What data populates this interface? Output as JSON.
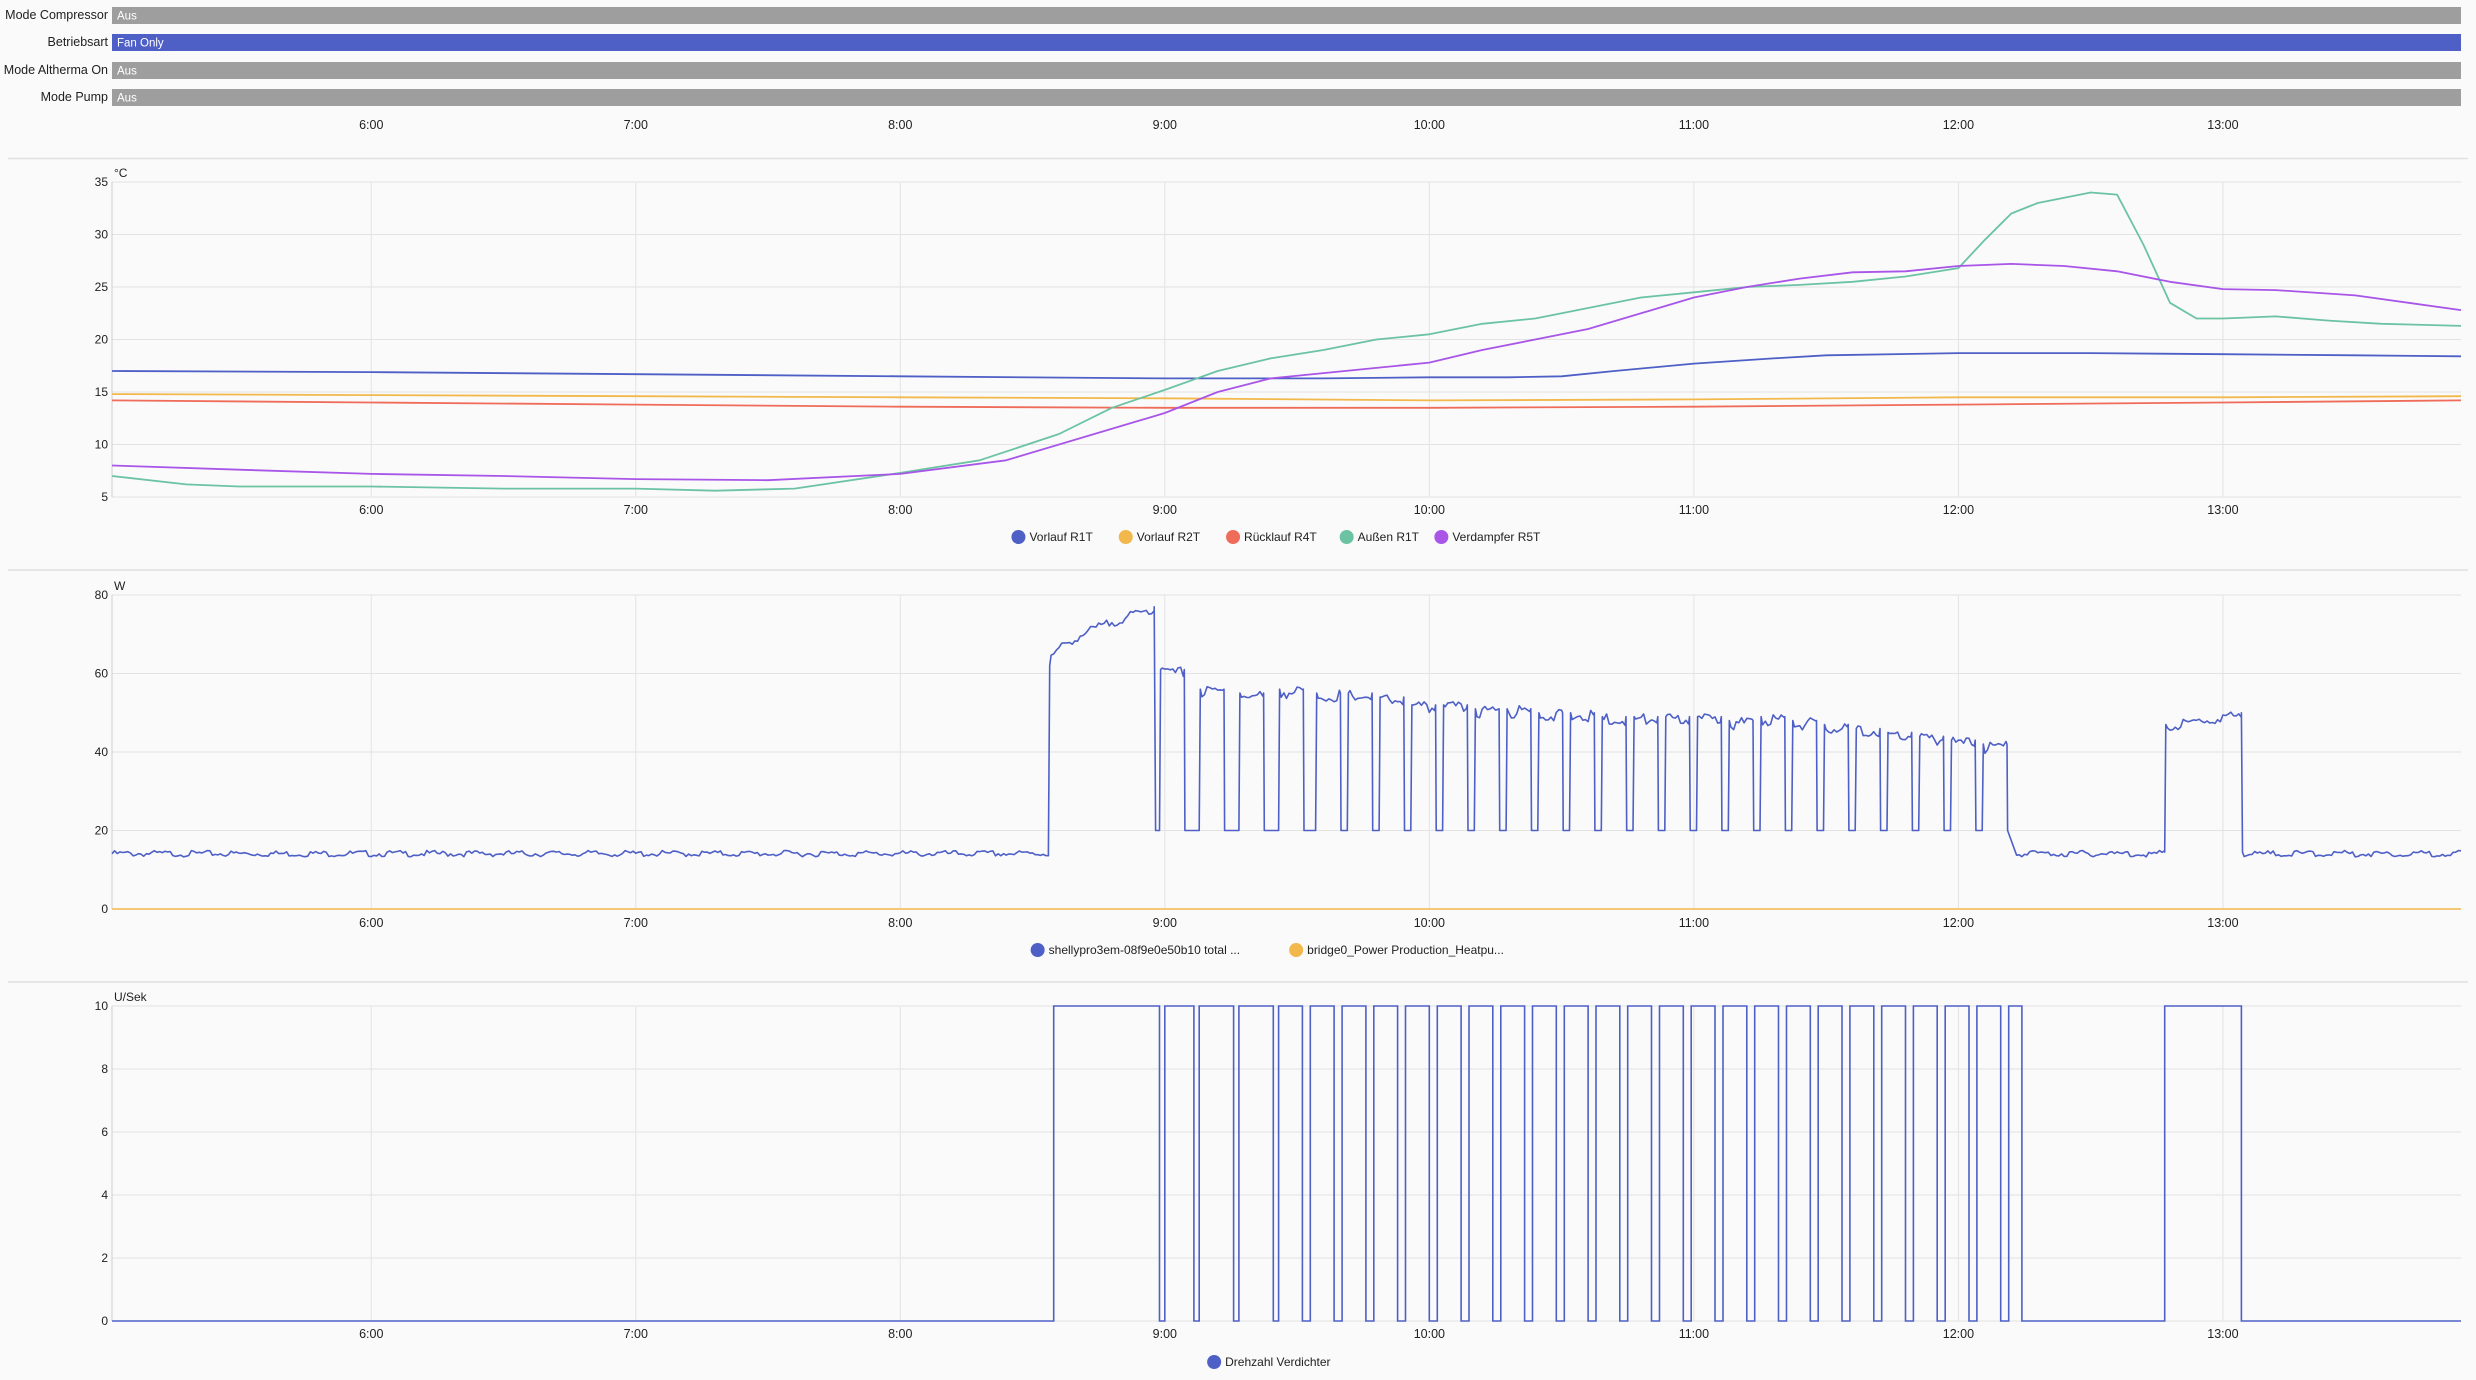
{
  "timeline": {
    "rows": [
      {
        "label": "Mode Compressor",
        "state": "Aus",
        "color": "#9e9e9e"
      },
      {
        "label": "Betriebsart",
        "state": "Fan Only",
        "color": "#4e5fc6"
      },
      {
        "label": "Mode Altherma On",
        "state": "Aus",
        "color": "#9e9e9e"
      },
      {
        "label": "Mode Pump",
        "state": "Aus",
        "color": "#9e9e9e"
      }
    ],
    "x_ticks": [
      "6:00",
      "7:00",
      "8:00",
      "9:00",
      "10:00",
      "11:00",
      "12:00",
      "13:00"
    ]
  },
  "chart_data": [
    {
      "type": "line",
      "unit": "°C",
      "ylim": [
        5,
        35
      ],
      "yticks": [
        "5",
        "10",
        "15",
        "20",
        "25",
        "30",
        "35"
      ],
      "xlim": [
        5.02,
        13.9
      ],
      "x_ticks": [
        "6:00",
        "7:00",
        "8:00",
        "9:00",
        "10:00",
        "11:00",
        "12:00",
        "13:00"
      ],
      "grid": true,
      "legend": "bottom",
      "series": [
        {
          "name": "Vorlauf R1T",
          "color": "#4e5fc6",
          "x": [
            5.02,
            6.0,
            7.0,
            8.0,
            9.0,
            9.3,
            9.6,
            10.0,
            10.3,
            10.5,
            10.7,
            11.0,
            11.3,
            11.5,
            12.0,
            12.5,
            13.0,
            13.5,
            13.9
          ],
          "y": [
            17,
            16.9,
            16.7,
            16.5,
            16.3,
            16.3,
            16.3,
            16.4,
            16.4,
            16.5,
            17.0,
            17.7,
            18.2,
            18.5,
            18.7,
            18.7,
            18.6,
            18.5,
            18.4
          ]
        },
        {
          "name": "Vorlauf R2T",
          "color": "#f2b84b",
          "x": [
            5.02,
            6.0,
            7.0,
            8.0,
            9.0,
            10.0,
            11.0,
            12.0,
            13.0,
            13.9
          ],
          "y": [
            14.8,
            14.7,
            14.6,
            14.5,
            14.4,
            14.2,
            14.3,
            14.5,
            14.5,
            14.6
          ]
        },
        {
          "name": "Rücklauf R4T",
          "color": "#ef6c5a",
          "x": [
            5.02,
            6.0,
            7.0,
            8.0,
            9.0,
            10.0,
            11.0,
            12.0,
            13.0,
            13.9
          ],
          "y": [
            14.2,
            14.0,
            13.8,
            13.6,
            13.5,
            13.5,
            13.6,
            13.8,
            14.0,
            14.2
          ]
        },
        {
          "name": "Außen R1T",
          "color": "#6cc3a3",
          "x": [
            5.02,
            5.3,
            5.5,
            6.0,
            6.5,
            7.0,
            7.3,
            7.6,
            8.0,
            8.3,
            8.6,
            8.8,
            9.0,
            9.2,
            9.4,
            9.6,
            9.8,
            10.0,
            10.2,
            10.4,
            10.6,
            10.8,
            11.0,
            11.2,
            11.4,
            11.6,
            11.8,
            12.0,
            12.1,
            12.2,
            12.3,
            12.4,
            12.5,
            12.6,
            12.7,
            12.8,
            12.9,
            13.0,
            13.2,
            13.4,
            13.6,
            13.9
          ],
          "y": [
            7.0,
            6.2,
            6.0,
            6.0,
            5.8,
            5.8,
            5.6,
            5.8,
            7.3,
            8.5,
            11.0,
            13.5,
            15.2,
            17.0,
            18.2,
            19.0,
            20.0,
            20.5,
            21.5,
            22.0,
            23.0,
            24.0,
            24.5,
            25.0,
            25.2,
            25.5,
            26.0,
            26.8,
            29.5,
            32.0,
            33.0,
            33.5,
            34.0,
            33.8,
            29.0,
            23.5,
            22.0,
            22.0,
            22.2,
            21.8,
            21.5,
            21.3
          ]
        },
        {
          "name": "Verdampfer R5T",
          "color": "#a855e8",
          "x": [
            5.02,
            5.5,
            6.0,
            6.5,
            7.0,
            7.5,
            8.0,
            8.4,
            8.8,
            9.0,
            9.2,
            9.4,
            9.6,
            9.8,
            10.0,
            10.2,
            10.4,
            10.6,
            10.8,
            11.0,
            11.2,
            11.4,
            11.6,
            11.8,
            12.0,
            12.2,
            12.4,
            12.6,
            12.8,
            13.0,
            13.2,
            13.5,
            13.9
          ],
          "y": [
            8.0,
            7.6,
            7.2,
            7.0,
            6.7,
            6.6,
            7.2,
            8.5,
            11.5,
            13.0,
            15.0,
            16.3,
            16.8,
            17.3,
            17.8,
            19.0,
            20.0,
            21.0,
            22.5,
            24.0,
            25.0,
            25.8,
            26.4,
            26.5,
            27.0,
            27.2,
            27.0,
            26.5,
            25.5,
            24.8,
            24.7,
            24.2,
            22.8
          ]
        }
      ]
    },
    {
      "type": "line",
      "unit": "W",
      "ylim": [
        0,
        80
      ],
      "yticks": [
        "0",
        "20",
        "40",
        "60",
        "80"
      ],
      "xlim": [
        5.02,
        13.9
      ],
      "x_ticks": [
        "6:00",
        "7:00",
        "8:00",
        "9:00",
        "10:00",
        "11:00",
        "12:00",
        "13:00"
      ],
      "grid": true,
      "legend": "bottom",
      "legend_labels": [
        "shellypro3em-08f9e0e50b10 total ...",
        "bridge0_Power Production_Heatpu..."
      ],
      "series": [
        {
          "color": "#4e5fc6",
          "base": 14.5,
          "ramp": {
            "x0": 8.56,
            "x1": 8.96,
            "y0": 62,
            "y1": 77
          },
          "low_after_ramp": 20,
          "cycles": {
            "x": [
              8.98,
              9.13,
              9.28,
              9.43,
              9.57,
              9.69,
              9.81,
              9.93,
              10.05,
              10.17,
              10.29,
              10.41,
              10.53,
              10.65,
              10.77,
              10.89,
              11.01,
              11.13,
              11.25,
              11.37,
              11.49,
              11.61,
              11.73,
              11.85,
              11.97,
              12.09
            ],
            "peak": [
              61,
              56,
              55,
              56,
              55,
              55,
              54,
              52,
              52,
              51,
              51,
              50,
              50,
              49,
              49,
              49,
              49,
              48,
              49,
              48,
              47,
              46,
              45,
              44,
              43,
              42
            ],
            "width": 0.12
          },
          "trough": 20,
          "quiet": [
            12.22,
            12.78
          ],
          "bump": {
            "x0": 12.78,
            "x1": 13.07,
            "y0": 47,
            "y1": 50
          }
        },
        {
          "color": "#f2b84b",
          "y": 0
        }
      ]
    },
    {
      "type": "line",
      "unit": "U/Sek",
      "ylim": [
        0,
        10
      ],
      "yticks": [
        "0",
        "2",
        "4",
        "6",
        "8",
        "10"
      ],
      "xlim": [
        5.02,
        13.9
      ],
      "x_ticks": [
        "6:00",
        "7:00",
        "8:00",
        "9:00",
        "10:00",
        "11:00",
        "12:00",
        "13:00"
      ],
      "grid": true,
      "legend": "bottom",
      "series": [
        {
          "name": "Drehzahl Verdichter",
          "color": "#4e5fc6",
          "on_intervals": [
            [
              8.58,
              8.98
            ],
            [
              9.0,
              9.11
            ],
            [
              9.13,
              9.26
            ],
            [
              9.28,
              9.41
            ],
            [
              9.43,
              9.52
            ],
            [
              9.55,
              9.64
            ],
            [
              9.67,
              9.76
            ],
            [
              9.79,
              9.88
            ],
            [
              9.91,
              10.0
            ],
            [
              10.03,
              10.12
            ],
            [
              10.15,
              10.24
            ],
            [
              10.27,
              10.36
            ],
            [
              10.39,
              10.48
            ],
            [
              10.51,
              10.6
            ],
            [
              10.63,
              10.72
            ],
            [
              10.75,
              10.84
            ],
            [
              10.87,
              10.96
            ],
            [
              10.99,
              11.08
            ],
            [
              11.11,
              11.2
            ],
            [
              11.23,
              11.32
            ],
            [
              11.35,
              11.44
            ],
            [
              11.47,
              11.56
            ],
            [
              11.59,
              11.68
            ],
            [
              11.71,
              11.8
            ],
            [
              11.83,
              11.92
            ],
            [
              11.95,
              12.04
            ],
            [
              12.07,
              12.16
            ],
            [
              12.19,
              12.24
            ],
            [
              12.78,
              13.07
            ]
          ]
        }
      ]
    }
  ]
}
